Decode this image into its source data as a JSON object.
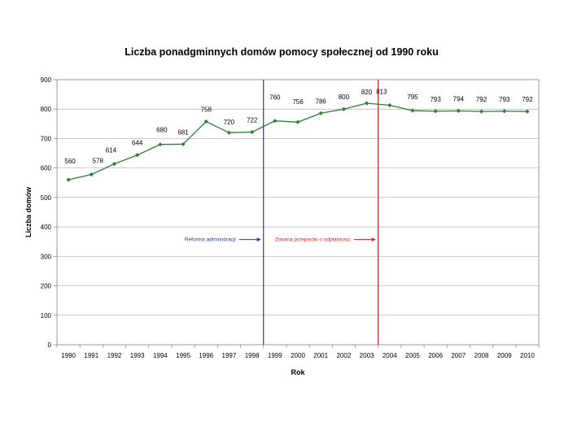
{
  "chart_data": {
    "type": "line",
    "title": "Liczba ponadgminnych domów pomocy społecznej od 1990 roku",
    "xlabel": "Rok",
    "ylabel": "Liczba domów",
    "ylim": [
      0,
      900
    ],
    "yticks": [
      0,
      100,
      200,
      300,
      400,
      500,
      600,
      700,
      800,
      900
    ],
    "grid": true,
    "legend": "none",
    "categories": [
      "1990",
      "1991",
      "1992",
      "1993",
      "1994",
      "1995",
      "1996",
      "1997",
      "1998",
      "1999",
      "2000",
      "2001",
      "2002",
      "2003",
      "2004",
      "2005",
      "2006",
      "2007",
      "2008",
      "2009",
      "2010"
    ],
    "series": [
      {
        "values": [
          560,
          578,
          614,
          644,
          680,
          681,
          758,
          720,
          722,
          760,
          756,
          786,
          800,
          820,
          813,
          795,
          793,
          794,
          792,
          793,
          792
        ],
        "color": "#2e7d32"
      }
    ],
    "annotations": [
      {
        "text": "Reforma administracji",
        "x_line": "1998.5",
        "color": "#1f3aa6",
        "y": 360
      },
      {
        "text": "Zmiana przepisów o odpłatności",
        "x_line": "2003.5",
        "color": "#d42020",
        "y": 360
      }
    ]
  }
}
